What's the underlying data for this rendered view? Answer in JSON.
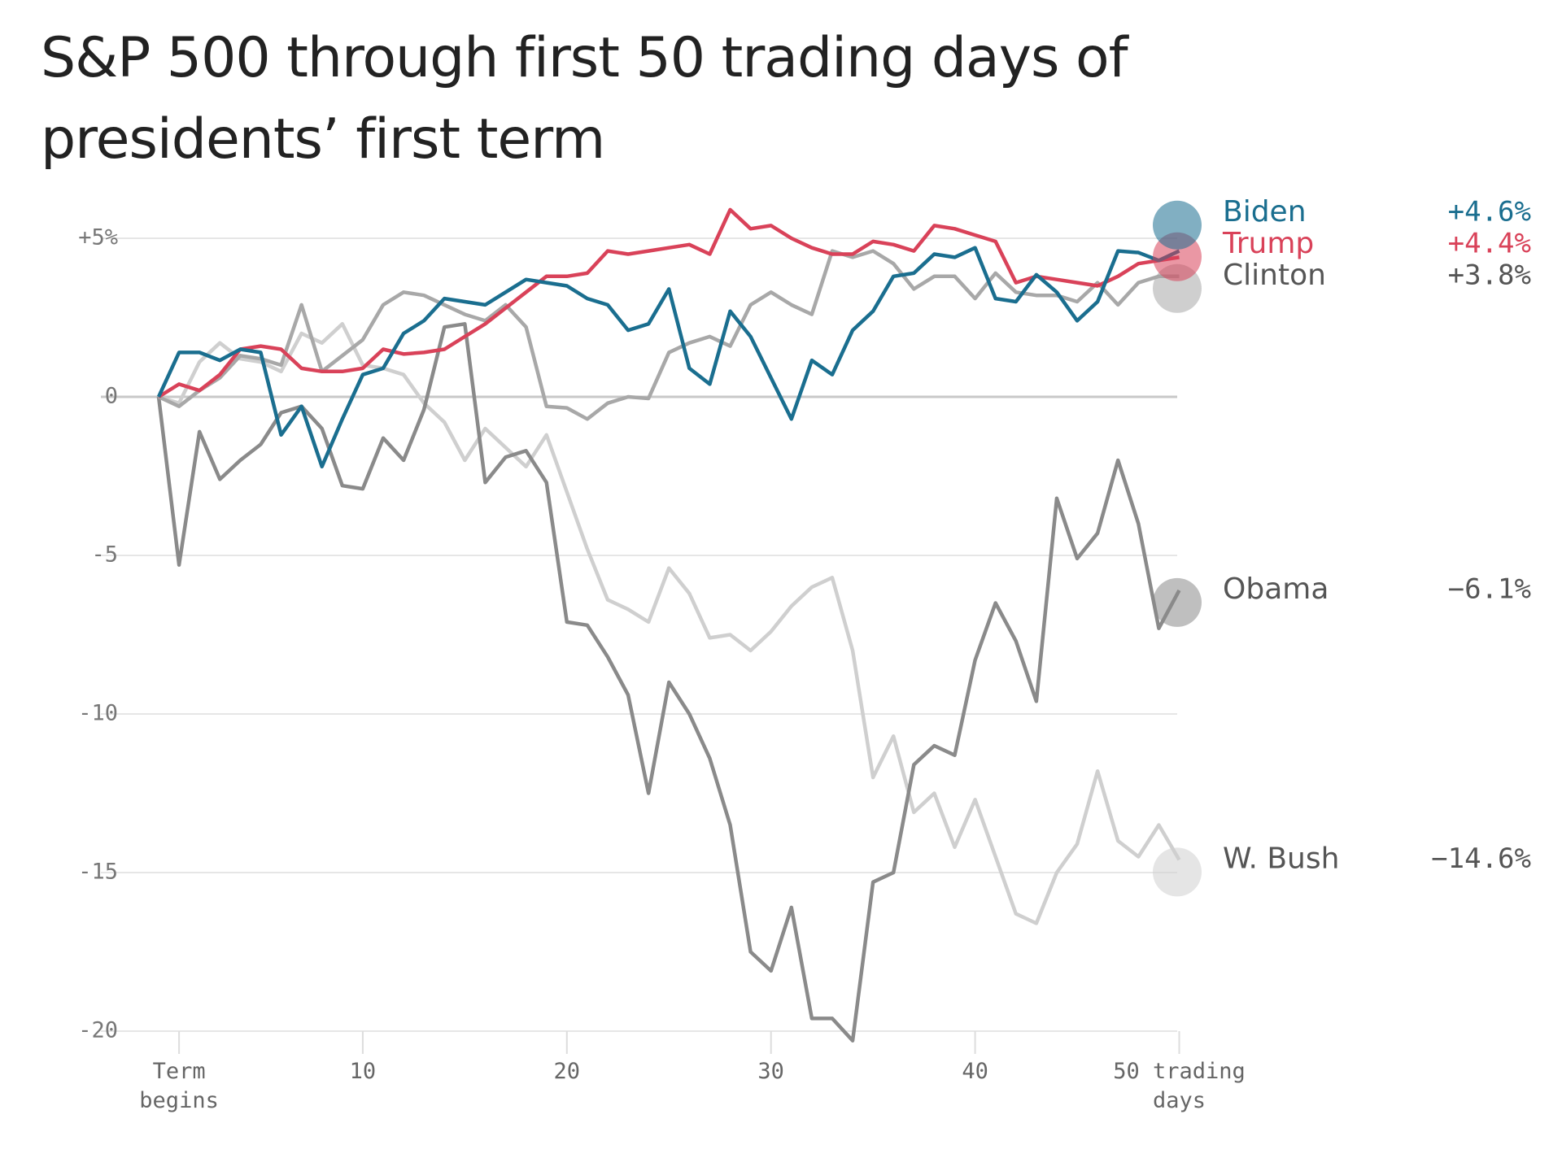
{
  "chart_data": {
    "type": "line",
    "title": "S&P 500 through first 50 trading days of presidents’ first term",
    "x": [
      0,
      1,
      2,
      3,
      4,
      5,
      6,
      7,
      8,
      9,
      10,
      11,
      12,
      13,
      14,
      15,
      16,
      17,
      18,
      19,
      20,
      21,
      22,
      23,
      24,
      25,
      26,
      27,
      28,
      29,
      30,
      31,
      32,
      33,
      34,
      35,
      36,
      37,
      38,
      39,
      40,
      41,
      42,
      43,
      44,
      45,
      46,
      47,
      48,
      49,
      50
    ],
    "xlim": [
      0,
      50
    ],
    "xticks": [
      {
        "value": 1,
        "label": "Term begins"
      },
      10,
      20,
      30,
      40,
      {
        "value": 50,
        "label": "50 trading days"
      }
    ],
    "ylim": [
      -21,
      6.5
    ],
    "yticks": [
      {
        "value": 5,
        "label": "+5%"
      },
      0,
      -5,
      -10,
      -15,
      -20
    ],
    "grid": true,
    "series": [
      {
        "name": "W. Bush",
        "color": "#cfcfcf",
        "text_color": "#555555",
        "end_label": "−14.6%",
        "values": [
          0,
          -0.2,
          1.1,
          1.7,
          1.2,
          1.1,
          0.8,
          2.0,
          1.7,
          2.3,
          1.0,
          0.9,
          0.7,
          -0.2,
          -0.8,
          -2.0,
          -1.0,
          -1.6,
          -2.2,
          -1.2,
          -3.0,
          -4.8,
          -6.4,
          -6.7,
          -7.1,
          -5.4,
          -6.2,
          -7.6,
          -7.5,
          -8.0,
          -7.4,
          -6.6,
          -6.0,
          -5.7,
          -8.0,
          -12.0,
          -10.7,
          -13.1,
          -12.5,
          -14.2,
          -12.7,
          -14.5,
          -16.3,
          -16.6,
          -15.0,
          -14.1,
          -11.8,
          -14.0,
          -14.5,
          -13.5,
          -14.6
        ]
      },
      {
        "name": "Obama",
        "color": "#8a8a8a",
        "text_color": "#555555",
        "end_label": "−6.1%",
        "values": [
          0,
          -5.3,
          -1.1,
          -2.6,
          -2.0,
          -1.5,
          -0.5,
          -0.3,
          -1.0,
          -2.8,
          -2.9,
          -1.3,
          -2.0,
          -0.4,
          2.2,
          2.3,
          -2.7,
          -1.9,
          -1.7,
          -2.7,
          -7.1,
          -7.2,
          -8.2,
          -9.4,
          -12.5,
          -9.0,
          -10.0,
          -11.4,
          -13.5,
          -17.5,
          -18.1,
          -16.1,
          -19.6,
          -19.6,
          -20.3,
          -15.3,
          -15.0,
          -11.6,
          -11.0,
          -11.3,
          -8.3,
          -6.5,
          -7.7,
          -9.6,
          -3.2,
          -5.1,
          -4.3,
          -2.0,
          -4.0,
          -7.3,
          -6.1
        ]
      },
      {
        "name": "Clinton",
        "color": "#a8a8a8",
        "text_color": "#555555",
        "end_label": "+3.8%",
        "values": [
          0,
          -0.3,
          0.2,
          0.6,
          1.3,
          1.2,
          1.0,
          2.9,
          0.8,
          1.3,
          1.8,
          2.9,
          3.3,
          3.2,
          2.9,
          2.6,
          2.4,
          2.9,
          2.2,
          -0.3,
          -0.35,
          -0.7,
          -0.2,
          0.0,
          -0.05,
          1.4,
          1.7,
          1.9,
          1.6,
          2.9,
          3.3,
          2.9,
          2.6,
          4.6,
          4.4,
          4.6,
          4.2,
          3.4,
          3.8,
          3.8,
          3.1,
          3.9,
          3.3,
          3.2,
          3.2,
          3.0,
          3.6,
          2.9,
          3.6,
          3.8,
          3.8
        ]
      },
      {
        "name": "Trump",
        "color": "#d94259",
        "text_color": "#d94259",
        "end_label": "+4.4%",
        "values": [
          0,
          0.4,
          0.2,
          0.7,
          1.5,
          1.6,
          1.5,
          0.9,
          0.8,
          0.8,
          0.9,
          1.5,
          1.35,
          1.4,
          1.5,
          1.9,
          2.3,
          2.8,
          3.3,
          3.8,
          3.8,
          3.9,
          4.6,
          4.5,
          4.6,
          4.7,
          4.8,
          4.5,
          5.9,
          5.3,
          5.4,
          5.0,
          4.7,
          4.5,
          4.5,
          4.9,
          4.8,
          4.6,
          5.4,
          5.3,
          5.1,
          4.9,
          3.6,
          3.8,
          3.7,
          3.6,
          3.5,
          3.8,
          4.2,
          4.3,
          4.4
        ]
      },
      {
        "name": "Biden",
        "color": "#1a6e8f",
        "text_color": "#1a6e8f",
        "end_label": "+4.6%",
        "values": [
          0,
          1.4,
          1.4,
          1.15,
          1.5,
          1.4,
          -1.2,
          -0.3,
          -2.2,
          -0.7,
          0.7,
          0.9,
          2.0,
          2.4,
          3.1,
          3.0,
          2.9,
          3.3,
          3.7,
          3.6,
          3.5,
          3.1,
          2.9,
          2.1,
          2.3,
          3.4,
          0.9,
          0.4,
          2.7,
          1.9,
          0.6,
          -0.7,
          1.15,
          0.7,
          2.1,
          2.7,
          3.8,
          3.9,
          4.5,
          4.4,
          4.7,
          3.1,
          3.0,
          3.85,
          3.3,
          2.4,
          3.0,
          4.6,
          4.55,
          4.3,
          4.6
        ]
      }
    ]
  }
}
